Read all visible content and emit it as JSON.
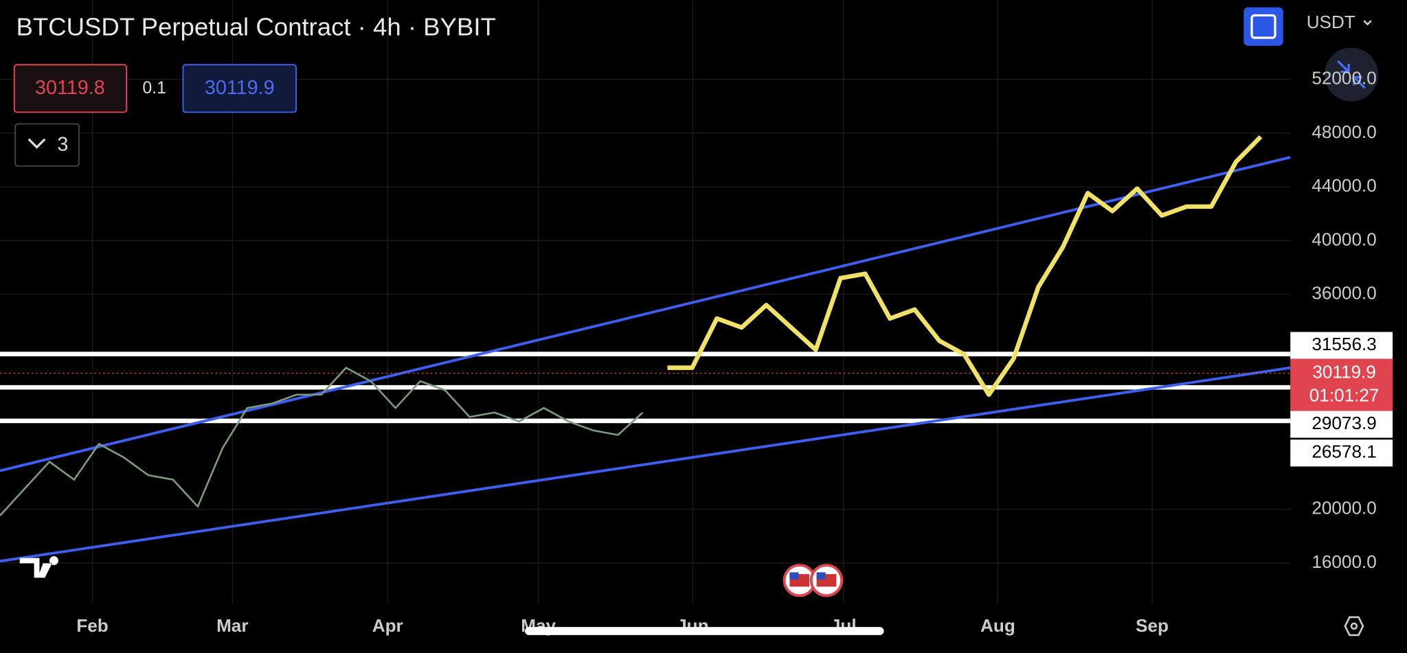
{
  "header": {
    "title": "BTCUSDT Perpetual Contract · 4h · BYBIT",
    "bid": "30119.8",
    "spread": "0.1",
    "ask": "30119.9",
    "indicators_count": "3",
    "currency": "USDT"
  },
  "chart_data": {
    "type": "line",
    "x_labels": [
      "Feb",
      "Mar",
      "Apr",
      "May",
      "Jun",
      "Jul",
      "Aug",
      "Sep"
    ],
    "series": [
      {
        "color": "#7c9a7c",
        "values": [
          19533,
          21533,
          23533,
          22200,
          24867,
          23867,
          22533,
          22200,
          20200,
          24533,
          27533,
          27867,
          28533,
          28533,
          30533,
          29533,
          27533,
          29533,
          28867,
          26867,
          27200,
          26533,
          27533,
          26533,
          25867,
          25533,
          27200
        ]
      },
      {
        "color": "#f0e266",
        "values": [
          30533,
          30533,
          34200,
          33533,
          35200,
          33533,
          31867,
          37200,
          37533,
          34200,
          34867,
          32533,
          31533,
          28533,
          31200,
          36533,
          39533,
          43533,
          42200,
          43867,
          41867,
          42533,
          42533,
          45867,
          47733
        ]
      }
    ],
    "ylim": [
      12500,
      57900
    ],
    "yticks": [
      {
        "value": 52000,
        "label": "52000.0"
      },
      {
        "value": 48000,
        "label": "48000.0"
      },
      {
        "value": 44000,
        "label": "44000.0"
      },
      {
        "value": 40000,
        "label": "40000.0"
      },
      {
        "value": 36000,
        "label": "36000.0"
      },
      {
        "value": 20000,
        "label": "20000.0"
      },
      {
        "value": 16000,
        "label": "16000.0"
      }
    ],
    "grid": true,
    "trendlines": [
      {
        "start": 22867,
        "end": 46200,
        "color": "#3d5ff0"
      },
      {
        "start": 16133,
        "end": 30533,
        "color": "#3d5ff0"
      }
    ],
    "levels": [
      31556.3,
      29073.9,
      26578.1
    ],
    "last_price": 30119.9,
    "countdown": "01:01:27"
  }
}
